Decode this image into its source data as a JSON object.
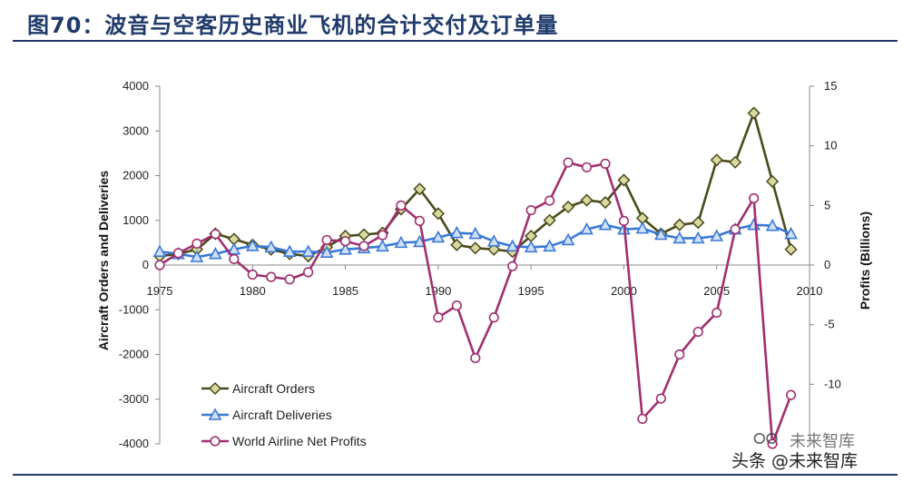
{
  "header": {
    "title": "图70：波音与空客历史商业飞机的合计交付及订单量"
  },
  "watermark": {
    "logo": "⭘⭘",
    "line1": "未来智库",
    "line2": "头条 @未来智库"
  },
  "chart_data": {
    "type": "line",
    "x": [
      1975,
      1976,
      1977,
      1978,
      1979,
      1980,
      1981,
      1982,
      1983,
      1984,
      1985,
      1986,
      1987,
      1988,
      1989,
      1990,
      1991,
      1992,
      1993,
      1994,
      1995,
      1996,
      1997,
      1998,
      1999,
      2000,
      2001,
      2002,
      2003,
      2004,
      2005,
      2006,
      2007,
      2008,
      2009
    ],
    "xlim": [
      1975,
      2010
    ],
    "xticks": [
      "1975",
      "1980",
      "1985",
      "1990",
      "1995",
      "2000",
      "2005",
      "2010"
    ],
    "ylabel": "Aircraft Orders and Deliveries",
    "ylim": [
      -4000,
      4000
    ],
    "yticks": [
      "4000",
      "3000",
      "2000",
      "1000",
      "0",
      "-1000",
      "-2000",
      "-3000",
      "-4000"
    ],
    "y2label": "Profits (Billions)",
    "y2lim": [
      -15,
      15
    ],
    "y2ticks": [
      "15",
      "10",
      "5",
      "0",
      "-5",
      "-10"
    ],
    "grid": false,
    "legend_position": "bottom-left",
    "series": [
      {
        "name": "Aircraft Orders",
        "axis": "left",
        "color": "#4a4a1a",
        "marker": "diamond",
        "marker_fill": "#d8d8a0",
        "values": [
          200,
          250,
          350,
          700,
          580,
          450,
          350,
          250,
          200,
          400,
          650,
          680,
          720,
          1250,
          1700,
          1150,
          450,
          380,
          350,
          300,
          650,
          1000,
          1300,
          1450,
          1400,
          1900,
          1050,
          700,
          900,
          950,
          2350,
          2300,
          3400,
          1870,
          350
        ]
      },
      {
        "name": "Aircraft Deliveries",
        "axis": "left",
        "color": "#3a78d8",
        "marker": "triangle",
        "marker_fill": "#cfe0f8",
        "values": [
          300,
          250,
          180,
          250,
          350,
          430,
          400,
          300,
          300,
          280,
          350,
          380,
          420,
          500,
          520,
          620,
          720,
          700,
          530,
          420,
          400,
          420,
          560,
          800,
          900,
          800,
          820,
          680,
          600,
          600,
          650,
          800,
          900,
          880,
          700
        ]
      },
      {
        "name": "World Airline Net Profits",
        "axis": "right",
        "color": "#a03070",
        "marker": "circle",
        "marker_fill": "#ffffff",
        "values": [
          0,
          1.0,
          1.8,
          2.6,
          0.5,
          -0.8,
          -1.0,
          -1.2,
          -0.6,
          2.1,
          2.0,
          1.6,
          2.5,
          5.0,
          3.7,
          -4.4,
          -3.4,
          -7.8,
          -4.4,
          -0.1,
          4.6,
          5.4,
          8.6,
          8.2,
          8.5,
          3.7,
          -12.9,
          -11.2,
          -7.5,
          -5.6,
          -4.0,
          3.0,
          5.6,
          -15.0,
          -10.9
        ]
      }
    ]
  }
}
